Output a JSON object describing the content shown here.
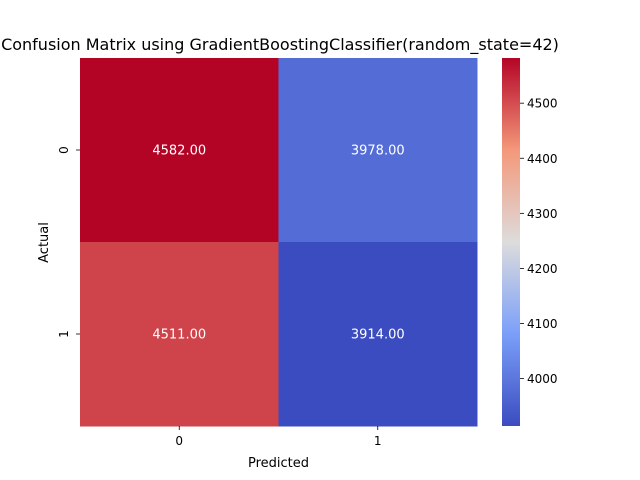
{
  "chart_data": {
    "type": "heatmap",
    "title": "Confusion Matrix using GradientBoostingClassifier(random_state=42)",
    "xlabel": "Predicted",
    "ylabel": "Actual",
    "x_categories": [
      "0",
      "1"
    ],
    "y_categories": [
      "0",
      "1"
    ],
    "values": [
      [
        4582,
        3978
      ],
      [
        4511,
        3914
      ]
    ],
    "cell_labels": [
      [
        "4582.00",
        "3978.00"
      ],
      [
        "4511.00",
        "3914.00"
      ]
    ],
    "colormap": "coolwarm",
    "colorbar": {
      "range": [
        3914,
        4582
      ],
      "ticks": [
        4000,
        4100,
        4200,
        4300,
        4400,
        4500
      ],
      "tick_labels": [
        "4000",
        "4100",
        "4200",
        "4300",
        "4400",
        "4500"
      ]
    },
    "colors": {
      "low": "#3b4cc0",
      "mid": "#dddcdc",
      "high": "#b40426",
      "text": "#ffffff"
    },
    "grid": false,
    "legend": "colorbar-right"
  }
}
